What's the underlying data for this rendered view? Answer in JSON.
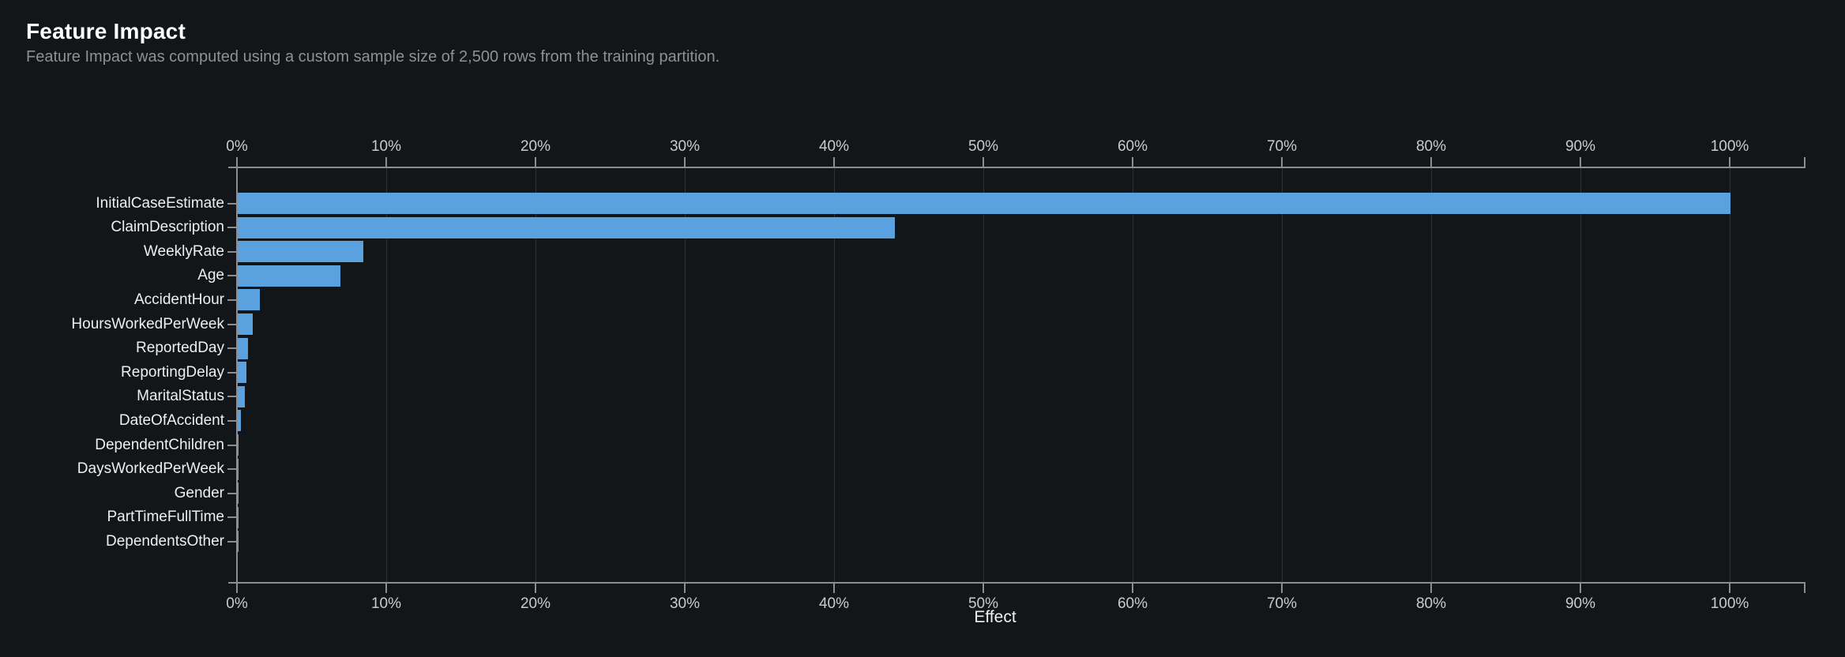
{
  "header": {
    "title": "Feature Impact",
    "subtitle": "Feature Impact was computed using a custom sample size of 2,500 rows from the training partition."
  },
  "chart_data": {
    "type": "bar",
    "orientation": "horizontal",
    "title": "Feature Impact",
    "xlabel": "Effect",
    "ylabel": "",
    "xlim": [
      0,
      105
    ],
    "x_ticks": [
      0,
      10,
      20,
      30,
      40,
      50,
      60,
      70,
      80,
      90,
      100
    ],
    "x_tick_suffix": "%",
    "grid": true,
    "legend": false,
    "categories": [
      "InitialCaseEstimate",
      "ClaimDescription",
      "WeeklyRate",
      "Age",
      "AccidentHour",
      "HoursWorkedPerWeek",
      "ReportedDay",
      "ReportingDelay",
      "MaritalStatus",
      "DateOfAccident",
      "DependentChildren",
      "DaysWorkedPerWeek",
      "Gender",
      "PartTimeFullTime",
      "DependentsOther"
    ],
    "values": [
      100,
      44,
      8.4,
      6.9,
      1.5,
      1.0,
      0.7,
      0.6,
      0.5,
      0.2,
      0.05,
      0.03,
      0.02,
      0.015,
      0.01
    ]
  },
  "colors": {
    "background": "#131619",
    "bar": "#5aa1e0",
    "axis": "#8a8e92",
    "gridline": "#2e3236",
    "title_text": "#ffffff",
    "subtitle_text": "#8e9194",
    "tick_text": "#c9ccce",
    "feature_label_text": "#edeff0"
  }
}
